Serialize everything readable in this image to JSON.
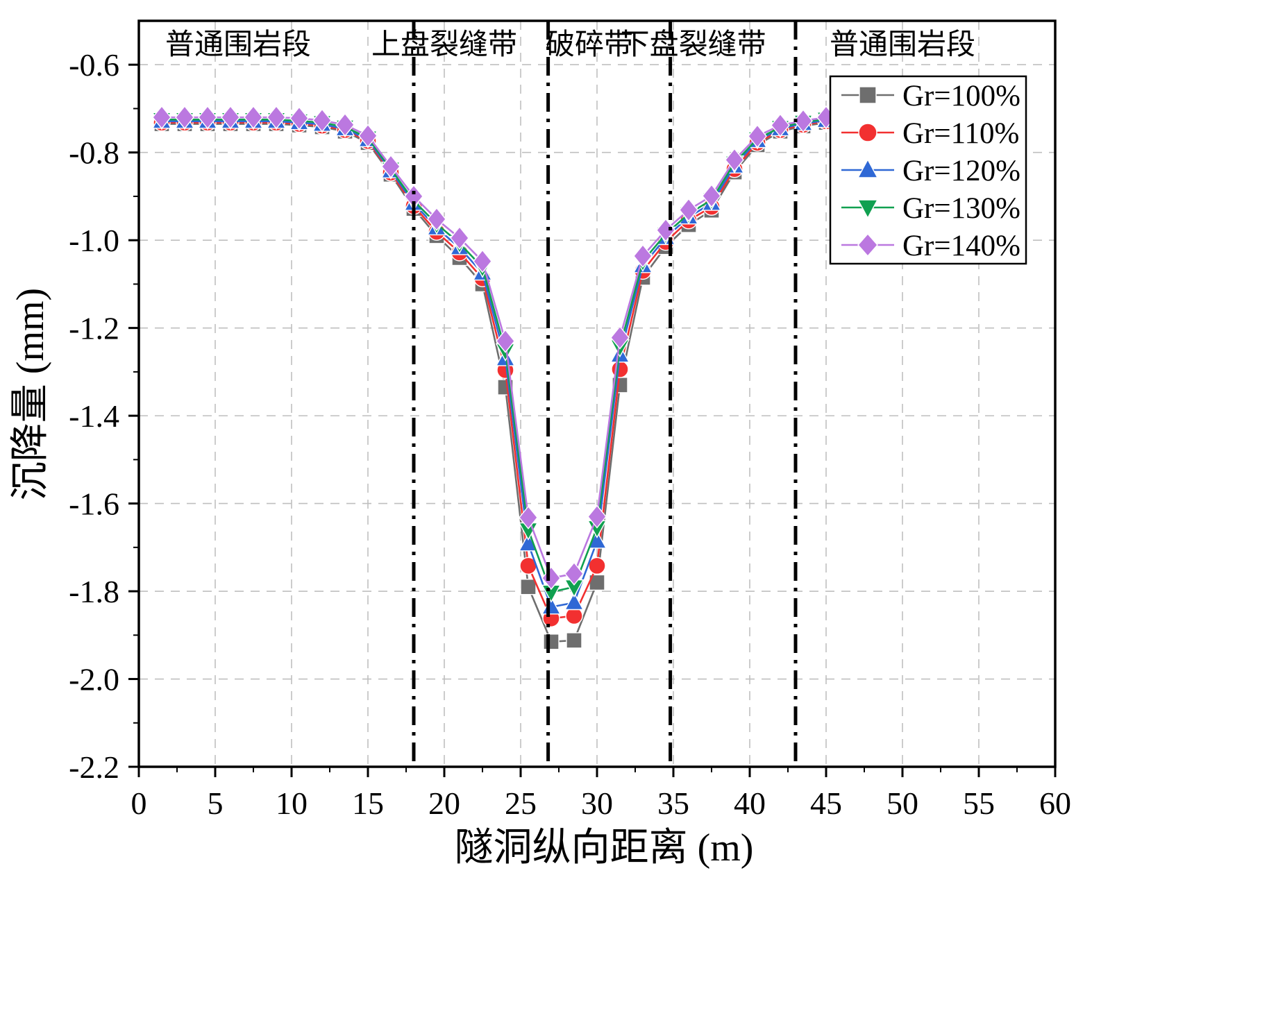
{
  "figure": {
    "background": "#ffffff"
  },
  "chart_data": {
    "type": "line",
    "title": "",
    "xlabel": "隧洞纵向距离 (m)",
    "ylabel": "沉降量 (mm)",
    "xlim": [
      0,
      60
    ],
    "ylim": [
      -2.2,
      -0.5
    ],
    "xticks": [
      0,
      5,
      10,
      15,
      20,
      25,
      30,
      35,
      40,
      45,
      50,
      55,
      60
    ],
    "yticks": [
      -2.2,
      -2.0,
      -1.8,
      -1.6,
      -1.4,
      -1.2,
      -1.0,
      -0.8,
      -0.6
    ],
    "grid": true,
    "grid_color": "#bfbfbf",
    "legend_position": "top-right",
    "zone_dividers": [
      18,
      26.8,
      34.8,
      43
    ],
    "zone_labels": [
      {
        "label": "普通围岩段",
        "x": 6.5
      },
      {
        "label": "上盘裂缝带",
        "x": 20
      },
      {
        "label": "破碎带",
        "x": 29.5
      },
      {
        "label": "下盘裂缝带",
        "x": 36.3
      },
      {
        "label": "普通围岩段",
        "x": 50
      }
    ],
    "x": [
      1.5,
      3,
      4.5,
      6,
      7.5,
      9,
      10.5,
      12,
      13.5,
      15,
      16.5,
      18,
      19.5,
      21,
      22.5,
      24,
      25.5,
      27,
      28.5,
      30,
      31.5,
      33,
      34.5,
      36,
      37.5,
      39,
      40.5,
      42,
      43.5,
      45
    ],
    "series": [
      {
        "name": "Gr=100%",
        "marker": "square",
        "color": "#6e6e6e",
        "values": [
          -0.735,
          -0.735,
          -0.735,
          -0.735,
          -0.735,
          -0.735,
          -0.738,
          -0.742,
          -0.752,
          -0.778,
          -0.85,
          -0.928,
          -0.99,
          -1.04,
          -1.1,
          -1.335,
          -1.79,
          -1.915,
          -1.912,
          -1.78,
          -1.33,
          -1.085,
          -1.015,
          -0.965,
          -0.932,
          -0.845,
          -0.783,
          -0.752,
          -0.74,
          -0.732
        ]
      },
      {
        "name": "Gr=110%",
        "marker": "circle",
        "color": "#f23030",
        "values": [
          -0.732,
          -0.732,
          -0.732,
          -0.732,
          -0.732,
          -0.732,
          -0.735,
          -0.739,
          -0.749,
          -0.774,
          -0.846,
          -0.922,
          -0.981,
          -1.028,
          -1.087,
          -1.296,
          -1.742,
          -1.862,
          -1.856,
          -1.742,
          -1.294,
          -1.07,
          -1.004,
          -0.955,
          -0.924,
          -0.838,
          -0.778,
          -0.749,
          -0.737,
          -0.729
        ]
      },
      {
        "name": "Gr=120%",
        "marker": "triangle-up",
        "color": "#2f68d5",
        "values": [
          -0.729,
          -0.729,
          -0.729,
          -0.729,
          -0.729,
          -0.729,
          -0.732,
          -0.736,
          -0.746,
          -0.771,
          -0.842,
          -0.916,
          -0.972,
          -1.017,
          -1.075,
          -1.27,
          -1.692,
          -1.836,
          -1.826,
          -1.686,
          -1.262,
          -1.058,
          -0.994,
          -0.947,
          -0.916,
          -0.831,
          -0.773,
          -0.746,
          -0.734,
          -0.727
        ]
      },
      {
        "name": "Gr=130%",
        "marker": "triangle-down",
        "color": "#10a050",
        "values": [
          -0.725,
          -0.725,
          -0.725,
          -0.725,
          -0.725,
          -0.725,
          -0.728,
          -0.732,
          -0.742,
          -0.767,
          -0.838,
          -0.91,
          -0.963,
          -1.007,
          -1.062,
          -1.252,
          -1.66,
          -1.802,
          -1.79,
          -1.655,
          -1.243,
          -1.048,
          -0.986,
          -0.94,
          -0.908,
          -0.824,
          -0.769,
          -0.743,
          -0.731,
          -0.724
        ]
      },
      {
        "name": "Gr=140%",
        "marker": "diamond",
        "color": "#bb78e0",
        "values": [
          -0.72,
          -0.72,
          -0.72,
          -0.72,
          -0.72,
          -0.72,
          -0.722,
          -0.727,
          -0.737,
          -0.762,
          -0.832,
          -0.9,
          -0.952,
          -0.995,
          -1.048,
          -1.23,
          -1.632,
          -1.77,
          -1.76,
          -1.63,
          -1.222,
          -1.036,
          -0.977,
          -0.931,
          -0.899,
          -0.817,
          -0.763,
          -0.738,
          -0.728,
          -0.72
        ]
      }
    ]
  }
}
